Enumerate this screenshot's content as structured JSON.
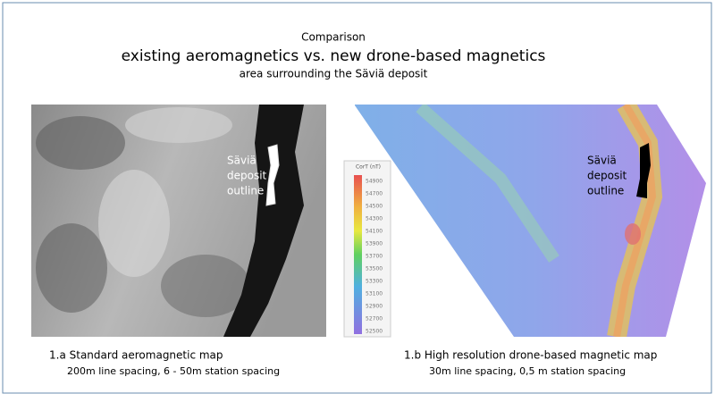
{
  "header": {
    "title": "Comparison",
    "subtitle": "existing aeromagnetics vs. new drone-based  magnetics",
    "tagline": "area surrounding the Säviä deposit"
  },
  "left_map": {
    "label": [
      "Säviä",
      "deposit",
      "outline"
    ],
    "caption": "1.a  Standard aeromagnetic map",
    "detail": "200m line spacing, 6 - 50m station spacing"
  },
  "legend": {
    "title": "CorT (nT)",
    "labels": [
      "54900",
      "54700",
      "54500",
      "54300",
      "54100",
      "53900",
      "53700",
      "53500",
      "53300",
      "53100",
      "52900",
      "52700",
      "52500"
    ]
  },
  "right_map": {
    "label": [
      "Säviä",
      "deposit",
      "outline"
    ],
    "caption": "1.b  High resolution drone-based  magnetic map",
    "detail": "30m  line spacing,  0,5 m  station spacing"
  }
}
